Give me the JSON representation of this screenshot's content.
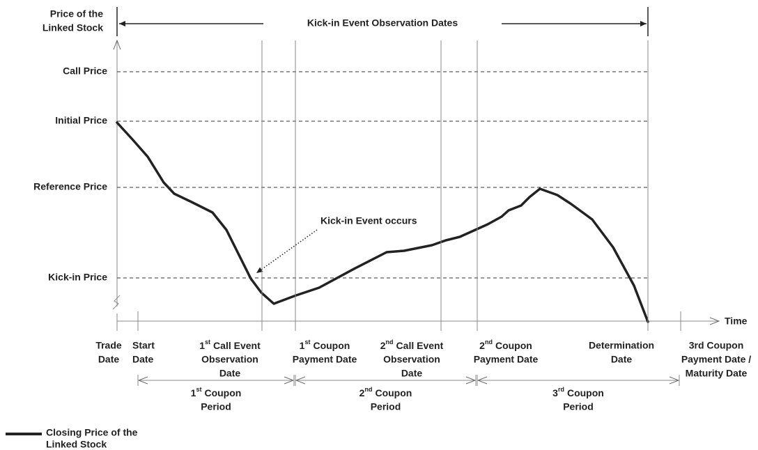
{
  "axis": {
    "y_title": [
      "Price of the",
      "Linked Stock"
    ],
    "x_title": "Time"
  },
  "levels": [
    "Call Price",
    "Initial Price",
    "Reference Price",
    "Kick-in Price"
  ],
  "observation_banner": "Kick-in Event Observation Dates",
  "annotation": "Kick-in Event occurs",
  "dates": [
    {
      "lines": [
        "Trade",
        "Date"
      ]
    },
    {
      "lines": [
        "Start",
        "Date"
      ]
    },
    {
      "ordinal": "1",
      "suffix": "st",
      "lines": [
        "Call Event",
        "Observation",
        "Date"
      ]
    },
    {
      "ordinal": "1",
      "suffix": "st",
      "lines": [
        "Coupon",
        "Payment Date"
      ]
    },
    {
      "ordinal": "2",
      "suffix": "nd",
      "lines": [
        "Call Event",
        "Observation",
        "Date"
      ]
    },
    {
      "ordinal": "2",
      "suffix": "nd",
      "lines": [
        "Coupon",
        "Payment Date"
      ]
    },
    {
      "lines": [
        "Determination",
        "Date"
      ]
    },
    {
      "lines": [
        "3rd Coupon",
        "Payment Date /",
        "Maturity Date"
      ]
    }
  ],
  "periods": [
    {
      "ordinal": "1",
      "suffix": "st",
      "lines": [
        "Coupon",
        "Period"
      ]
    },
    {
      "ordinal": "2",
      "suffix": "nd",
      "lines": [
        "Coupon",
        "Period"
      ]
    },
    {
      "ordinal": "3",
      "suffix": "rd",
      "lines": [
        "Coupon",
        "Period"
      ]
    }
  ],
  "legend": [
    "Closing Price of the",
    "Linked Stock"
  ]
}
